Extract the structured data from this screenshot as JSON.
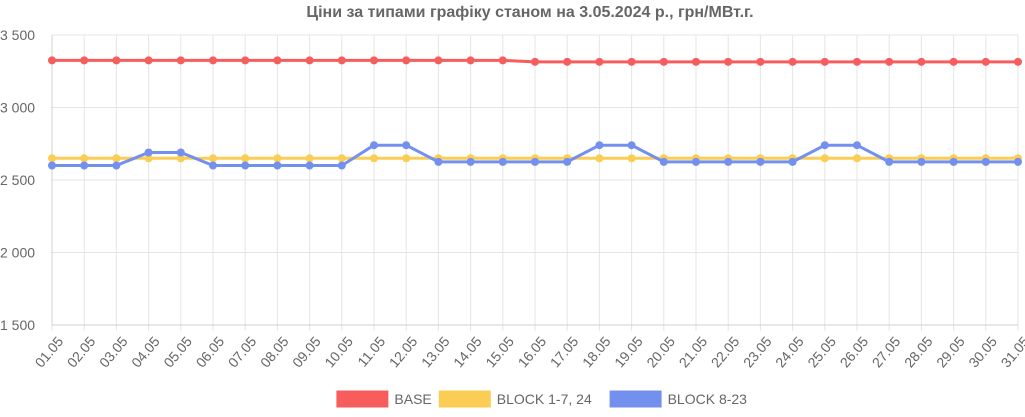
{
  "chart_data": {
    "type": "line",
    "title": "Ціни за типами графіку станом на 3.05.2024 р., грн/МВт.г.",
    "xlabel": "",
    "ylabel": "",
    "ylim": [
      1500,
      3500
    ],
    "y_ticks": [
      1500,
      2000,
      2500,
      3000,
      3500
    ],
    "y_tick_labels": [
      "1 500",
      "2 000",
      "2 500",
      "3 000",
      "3 500"
    ],
    "grid": true,
    "legend_position": "bottom",
    "categories": [
      "01.05",
      "02.05",
      "03.05",
      "04.05",
      "05.05",
      "06.05",
      "07.05",
      "08.05",
      "09.05",
      "10.05",
      "11.05",
      "12.05",
      "13.05",
      "14.05",
      "15.05",
      "16.05",
      "17.05",
      "18.05",
      "19.05",
      "20.05",
      "21.05",
      "22.05",
      "23.05",
      "24.05",
      "25.05",
      "26.05",
      "27.05",
      "28.05",
      "29.05",
      "30.05",
      "31.05"
    ],
    "series": [
      {
        "name": "BASE",
        "color": "#f75d5d",
        "values": [
          3325,
          3325,
          3325,
          3325,
          3325,
          3325,
          3325,
          3325,
          3325,
          3325,
          3325,
          3325,
          3325,
          3325,
          3325,
          3315,
          3315,
          3315,
          3315,
          3315,
          3315,
          3315,
          3315,
          3315,
          3315,
          3315,
          3315,
          3315,
          3315,
          3315,
          3315
        ]
      },
      {
        "name": "BLOCK 1-7, 24",
        "color": "#fbcd55",
        "values": [
          2650,
          2650,
          2650,
          2650,
          2650,
          2650,
          2650,
          2650,
          2650,
          2650,
          2650,
          2650,
          2650,
          2650,
          2650,
          2650,
          2650,
          2650,
          2650,
          2650,
          2650,
          2650,
          2650,
          2650,
          2650,
          2650,
          2650,
          2650,
          2650,
          2650,
          2650
        ]
      },
      {
        "name": "BLOCK 8-23",
        "color": "#7490ee",
        "values": [
          2600,
          2600,
          2600,
          2690,
          2690,
          2600,
          2600,
          2600,
          2600,
          2600,
          2740,
          2740,
          2625,
          2625,
          2625,
          2625,
          2625,
          2740,
          2740,
          2625,
          2625,
          2625,
          2625,
          2625,
          2740,
          2740,
          2625,
          2625,
          2625,
          2625,
          2625
        ]
      }
    ]
  }
}
